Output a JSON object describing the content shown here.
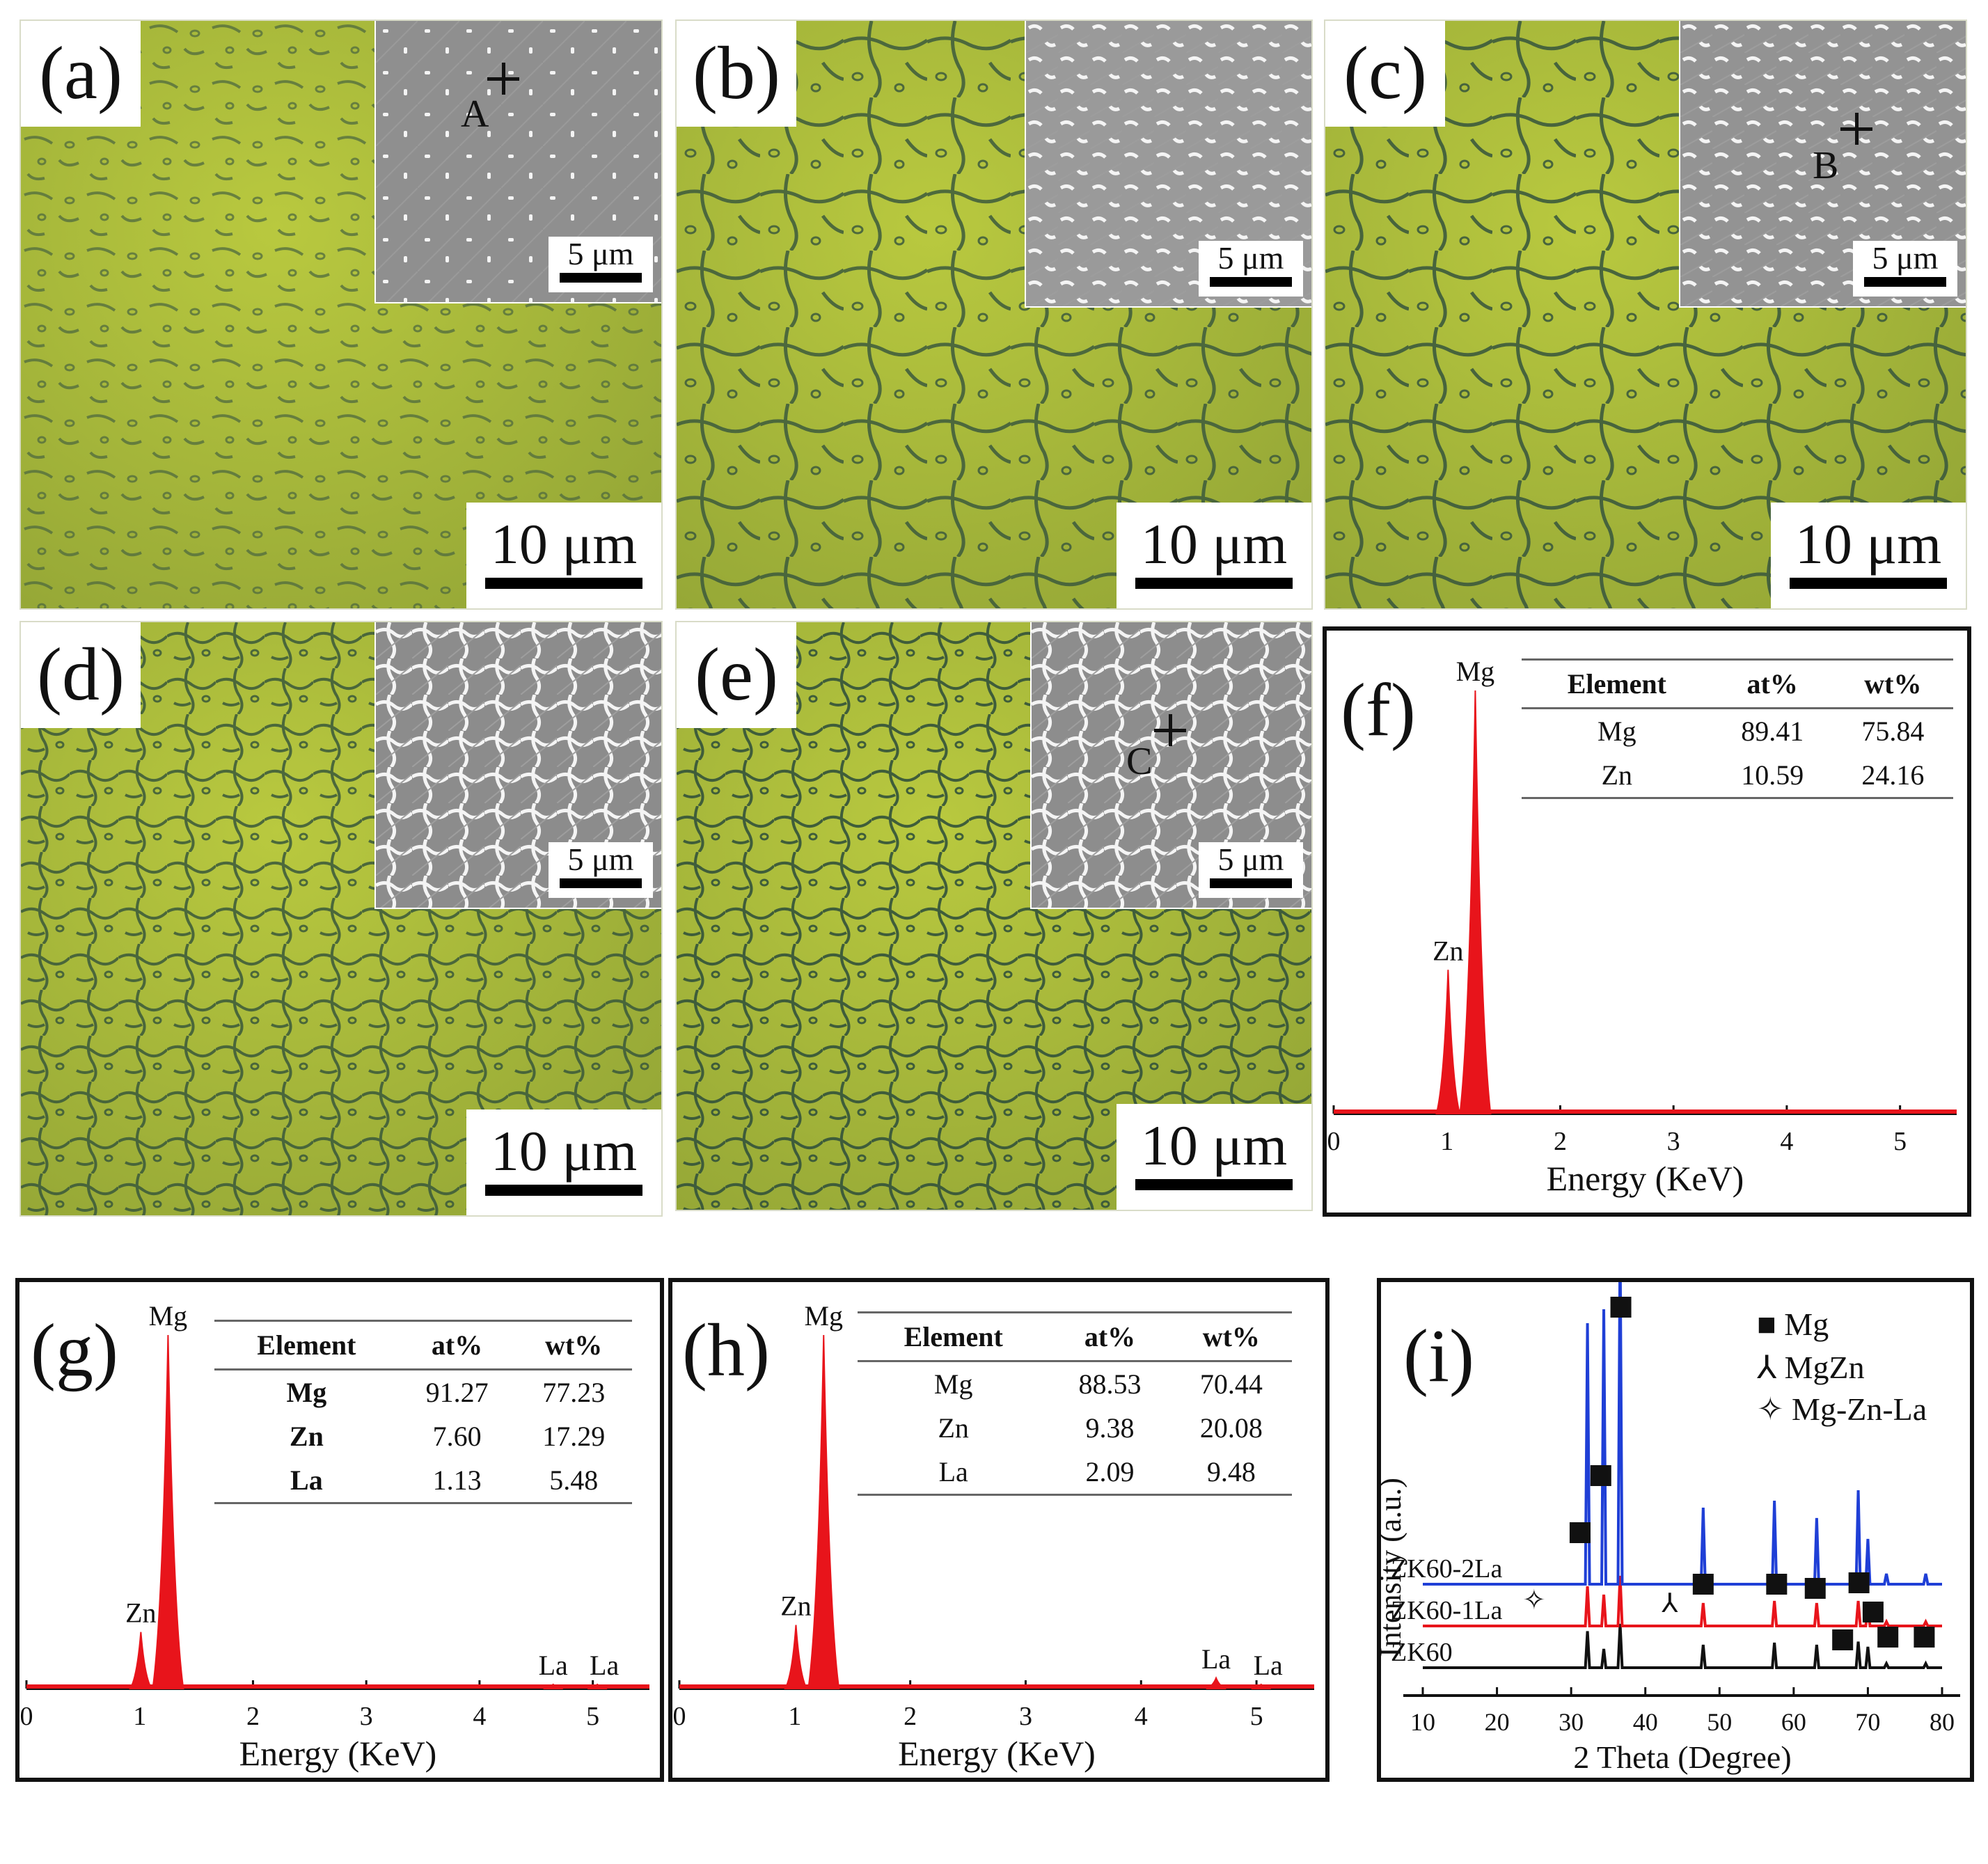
{
  "panels": {
    "a": {
      "label": "(a)",
      "scalebar": "10 μm",
      "inset_scalebar": "5 μm",
      "point": "A"
    },
    "b": {
      "label": "(b)",
      "scalebar": "10 μm",
      "inset_scalebar": "5 μm"
    },
    "c": {
      "label": "(c)",
      "scalebar": "10 μm",
      "inset_scalebar": "5 μm",
      "point": "B"
    },
    "d": {
      "label": "(d)",
      "scalebar": "10 μm",
      "inset_scalebar": "5 μm"
    },
    "e": {
      "label": "(e)",
      "scalebar": "10 μm",
      "inset_scalebar": "5 μm",
      "point": "C"
    }
  },
  "colors": {
    "micro_bg": "#a9b93a",
    "micro_dark": "#3f5a3a",
    "sem_bg": "#8f8f8f",
    "sem_phase": "#f4f4f4",
    "eds_fill": "#e8141b",
    "xrd_blue": "#1f3fd6",
    "xrd_red": "#e8141b",
    "xrd_black": "#111111"
  },
  "chart_data": [
    {
      "id": "f",
      "type": "line",
      "label": "(f)",
      "xlabel": "Energy (KeV)",
      "xlim": [
        0,
        5.5
      ],
      "xticks": [
        "0",
        "1",
        "2",
        "3",
        "4",
        "5"
      ],
      "peaks": [
        {
          "x": 1.01,
          "y": 0.34,
          "name": "Zn"
        },
        {
          "x": 1.25,
          "y": 1.0,
          "name": "Mg"
        }
      ],
      "table": {
        "headers": [
          "Element",
          "at%",
          "wt%"
        ],
        "rows": [
          [
            "Mg",
            "89.41",
            "75.84"
          ],
          [
            "Zn",
            "10.59",
            "24.16"
          ]
        ]
      }
    },
    {
      "id": "g",
      "type": "line",
      "label": "(g)",
      "xlabel": "Energy (KeV)",
      "xlim": [
        0,
        5.5
      ],
      "xticks": [
        "0",
        "1",
        "2",
        "3",
        "4",
        "5"
      ],
      "peaks": [
        {
          "x": 1.01,
          "y": 0.16,
          "name": "Zn"
        },
        {
          "x": 1.25,
          "y": 1.0,
          "name": "Mg"
        },
        {
          "x": 4.65,
          "y": 0.01,
          "name": "La"
        },
        {
          "x": 5.04,
          "y": 0.0,
          "name": "La"
        }
      ],
      "table": {
        "headers": [
          "Element",
          "at%",
          "wt%"
        ],
        "rows": [
          [
            "Mg",
            "91.27",
            "77.23"
          ],
          [
            "Zn",
            "7.60",
            "17.29"
          ],
          [
            "La",
            "1.13",
            "5.48"
          ]
        ]
      }
    },
    {
      "id": "h",
      "type": "line",
      "label": "(h)",
      "xlabel": "Energy (KeV)",
      "xlim": [
        0,
        5.5
      ],
      "xticks": [
        "0",
        "1",
        "2",
        "3",
        "4",
        "5"
      ],
      "peaks": [
        {
          "x": 1.01,
          "y": 0.18,
          "name": "Zn"
        },
        {
          "x": 1.25,
          "y": 1.0,
          "name": "Mg"
        },
        {
          "x": 4.65,
          "y": 0.03,
          "name": "La"
        },
        {
          "x": 5.04,
          "y": 0.0,
          "name": "La"
        }
      ],
      "table": {
        "headers": [
          "Element",
          "at%",
          "wt%"
        ],
        "rows": [
          [
            "Mg",
            "88.53",
            "70.44"
          ],
          [
            "Zn",
            "9.38",
            "20.08"
          ],
          [
            "La",
            "2.09",
            "9.48"
          ]
        ]
      }
    },
    {
      "id": "i",
      "type": "line",
      "label": "(i)",
      "xlabel": "2 Theta (Degree)",
      "ylabel": "Intensity (a.u.)",
      "xlim": [
        10,
        80
      ],
      "xticks": [
        "10",
        "20",
        "30",
        "40",
        "50",
        "60",
        "70",
        "80"
      ],
      "series": [
        {
          "name": "ZK60",
          "peaks": [
            [
              32.2,
              0.35
            ],
            [
              34.4,
              0.18
            ],
            [
              36.6,
              0.42
            ],
            [
              47.8,
              0.22
            ],
            [
              57.4,
              0.24
            ],
            [
              63.1,
              0.22
            ],
            [
              68.7,
              0.25
            ],
            [
              70.0,
              0.2
            ],
            [
              72.5,
              0.04
            ],
            [
              77.8,
              0.04
            ]
          ]
        },
        {
          "name": "ZK60-1La",
          "peaks": [
            [
              32.2,
              0.38
            ],
            [
              34.4,
              0.3
            ],
            [
              36.6,
              0.48
            ],
            [
              47.8,
              0.22
            ],
            [
              57.4,
              0.24
            ],
            [
              63.1,
              0.22
            ],
            [
              68.7,
              0.24
            ],
            [
              70.0,
              0.2
            ],
            [
              72.5,
              0.04
            ],
            [
              77.8,
              0.04
            ]
          ]
        },
        {
          "name": "ZK60-2La",
          "peaks": [
            [
              32.2,
              0.75
            ],
            [
              34.4,
              0.79
            ],
            [
              36.6,
              1.0
            ],
            [
              47.8,
              0.22
            ],
            [
              57.4,
              0.24
            ],
            [
              63.1,
              0.19
            ],
            [
              68.7,
              0.27
            ],
            [
              70.0,
              0.13
            ],
            [
              72.5,
              0.03
            ],
            [
              77.8,
              0.03
            ]
          ]
        }
      ],
      "markers": {
        "Mg": [
          31.2,
          34.0,
          36.7,
          47.8,
          57.7,
          62.9,
          66.6,
          68.8,
          70.7,
          72.7,
          77.6
        ],
        "MgZn": [
          43.3
        ],
        "Mg-Zn-La": [
          25.0
        ]
      },
      "legend": [
        {
          "symbol": "■",
          "name": "Mg"
        },
        {
          "symbol": "⅄",
          "name": "MgZn"
        },
        {
          "symbol": "✧",
          "name": "Mg-Zn-La"
        }
      ]
    }
  ]
}
